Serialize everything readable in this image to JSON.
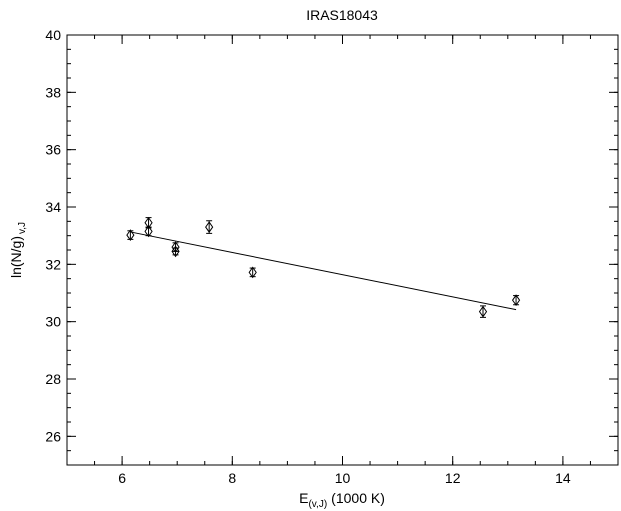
{
  "chart_data": {
    "type": "scatter",
    "title": "IRAS18043",
    "xlabel": {
      "main": "E",
      "sub": "(v,J)",
      "rest": "(1000 K)"
    },
    "ylabel": {
      "main": "ln(N/g)",
      "sub": "v,J"
    },
    "xlim": [
      5,
      15
    ],
    "ylim": [
      25,
      40
    ],
    "x_ticks": [
      6,
      8,
      10,
      12,
      14
    ],
    "y_ticks": [
      26,
      28,
      30,
      32,
      34,
      36,
      38,
      40
    ],
    "x_minor_step": 0.5,
    "y_minor_step": 0.5,
    "grid": false,
    "series": [
      {
        "marker": "diamond-open",
        "points": [
          {
            "x": 6.15,
            "y": 33.02,
            "err": 0.15
          },
          {
            "x": 6.48,
            "y": 33.45,
            "err": 0.18
          },
          {
            "x": 6.48,
            "y": 33.15,
            "err": 0.15
          },
          {
            "x": 6.97,
            "y": 32.6,
            "err": 0.15
          },
          {
            "x": 6.97,
            "y": 32.45,
            "err": 0.12
          },
          {
            "x": 7.58,
            "y": 33.3,
            "err": 0.22
          },
          {
            "x": 8.37,
            "y": 31.72,
            "err": 0.15
          },
          {
            "x": 12.55,
            "y": 30.35,
            "err": 0.2
          },
          {
            "x": 13.15,
            "y": 30.75,
            "err": 0.16
          }
        ]
      }
    ],
    "fit_line": {
      "x": [
        6.15,
        13.15
      ],
      "y": [
        33.13,
        30.42
      ]
    }
  }
}
